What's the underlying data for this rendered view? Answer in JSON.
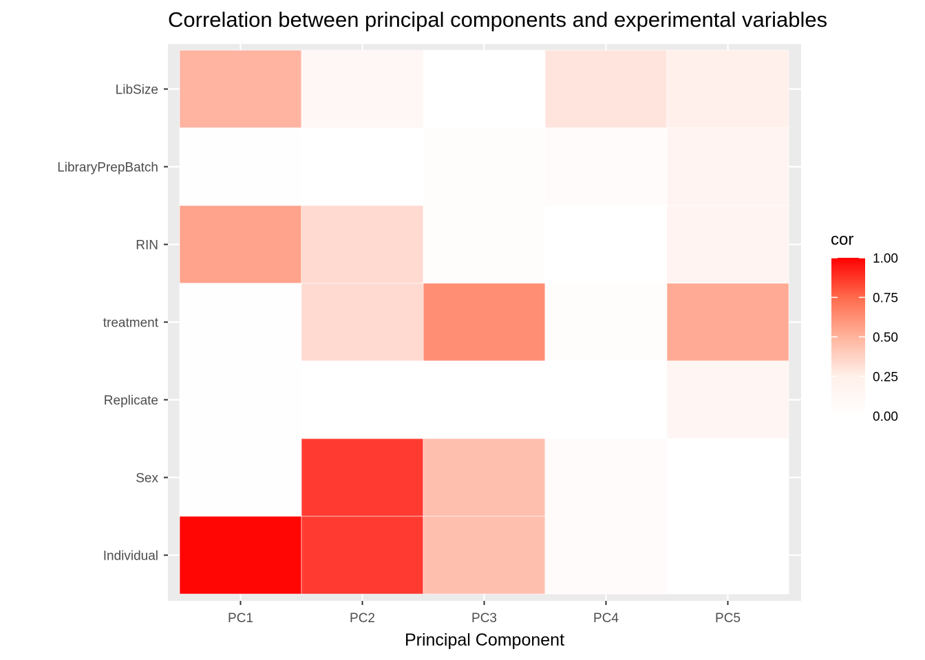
{
  "chart_data": {
    "type": "heatmap",
    "title": "Correlation between principal components and experimental variables",
    "xlabel": "Principal Component",
    "ylabel": "",
    "x_categories": [
      "PC1",
      "PC2",
      "PC3",
      "PC4",
      "PC5"
    ],
    "y_categories": [
      "LibSize",
      "LibraryPrepBatch",
      "RIN",
      "treatment",
      "Replicate",
      "Sex",
      "Individual"
    ],
    "values": [
      [
        0.37,
        0.05,
        0.0,
        0.15,
        0.09
      ],
      [
        0.01,
        0.0,
        0.02,
        0.03,
        0.07
      ],
      [
        0.44,
        0.2,
        0.02,
        0.0,
        0.07
      ],
      [
        0.01,
        0.2,
        0.52,
        0.02,
        0.41
      ],
      [
        0.01,
        0.0,
        0.0,
        0.0,
        0.06
      ],
      [
        0.01,
        0.8,
        0.32,
        0.03,
        0.0
      ],
      [
        0.98,
        0.8,
        0.32,
        0.03,
        0.0
      ]
    ],
    "legend": {
      "title": "cor",
      "labels": [
        "1.00",
        "0.75",
        "0.50",
        "0.25",
        "0.00"
      ],
      "breaks": [
        1.0,
        0.75,
        0.5,
        0.25,
        0.0
      ],
      "range": [
        0,
        1
      ],
      "position": "right"
    },
    "colors": {
      "low": "#ffffff",
      "high": "#ff0000",
      "panel_background": "#ebebeb",
      "grid": "#ffffff"
    }
  }
}
